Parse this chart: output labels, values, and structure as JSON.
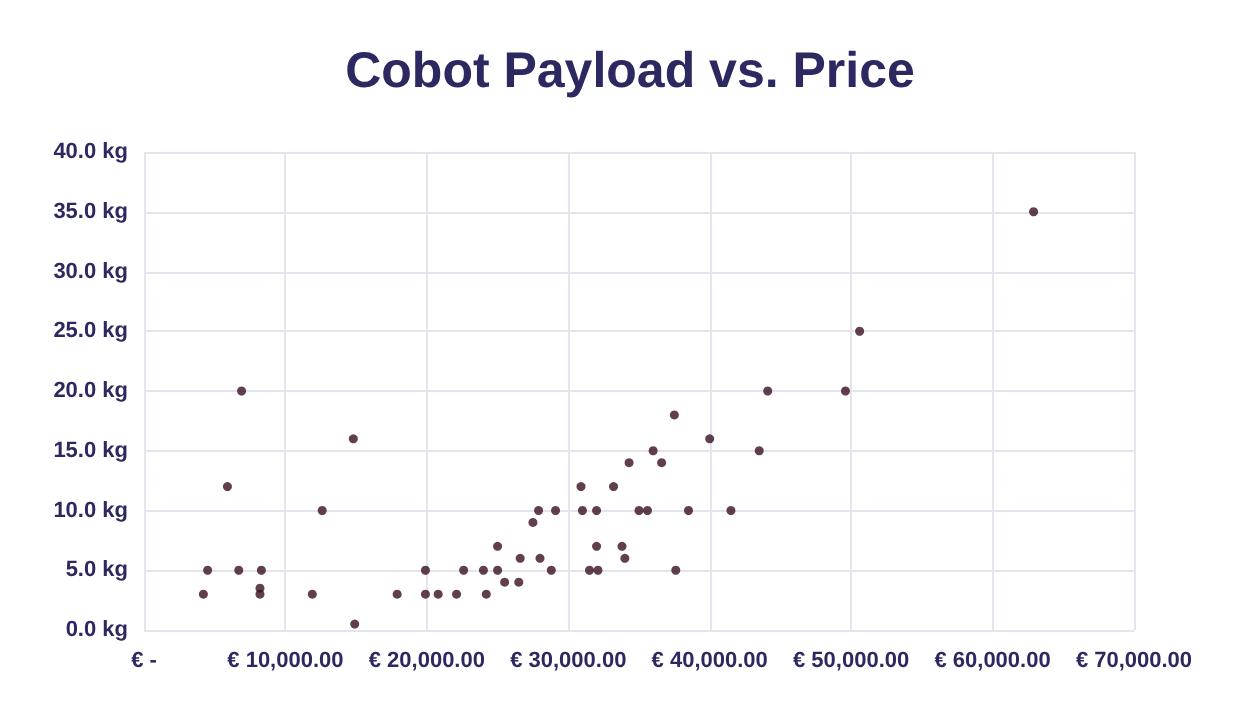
{
  "chart_data": {
    "type": "scatter",
    "title": "Cobot Payload vs. Price",
    "x": [
      4200,
      4500,
      5900,
      6900,
      6700,
      8200,
      8200,
      8300,
      11900,
      12600,
      14800,
      14900,
      17900,
      19900,
      19900,
      20800,
      22100,
      22600,
      24000,
      24200,
      25000,
      25000,
      25500,
      26500,
      26600,
      27500,
      27900,
      28000,
      28800,
      29100,
      30900,
      31000,
      31500,
      32000,
      32000,
      32100,
      33200,
      33800,
      34000,
      34300,
      35000,
      35600,
      36000,
      36600,
      37500,
      37600,
      38500,
      40000,
      41500,
      43500,
      44100,
      49600,
      50600,
      62900
    ],
    "series": [
      {
        "color": "#3a0f22",
        "values": [
          3,
          5,
          12,
          20,
          5,
          3,
          3.5,
          5,
          3,
          10,
          16,
          0.5,
          3,
          5,
          3,
          3,
          3,
          5,
          5,
          3,
          7,
          5,
          4,
          4,
          6,
          9,
          10,
          6,
          5,
          10,
          12,
          10,
          5,
          10,
          7,
          5,
          12,
          7,
          6,
          14,
          10,
          10,
          15,
          14,
          18,
          5,
          10,
          16,
          10,
          15,
          20,
          20,
          25,
          35
        ]
      }
    ],
    "xlim": [
      0,
      70000
    ],
    "ylim": [
      0,
      40
    ],
    "xticks": [
      {
        "value": 0,
        "label": "€ -"
      },
      {
        "value": 10000,
        "label": "€ 10,000.00"
      },
      {
        "value": 20000,
        "label": "€ 20,000.00"
      },
      {
        "value": 30000,
        "label": "€ 30,000.00"
      },
      {
        "value": 40000,
        "label": "€ 40,000.00"
      },
      {
        "value": 50000,
        "label": "€ 50,000.00"
      },
      {
        "value": 60000,
        "label": "€ 60,000.00"
      },
      {
        "value": 70000,
        "label": "€ 70,000.00"
      }
    ],
    "yticks": [
      {
        "value": 0,
        "label": "0.0 kg"
      },
      {
        "value": 5,
        "label": "5.0 kg"
      },
      {
        "value": 10,
        "label": "10.0 kg"
      },
      {
        "value": 15,
        "label": "15.0 kg"
      },
      {
        "value": 20,
        "label": "20.0 kg"
      },
      {
        "value": 25,
        "label": "25.0 kg"
      },
      {
        "value": 30,
        "label": "30.0 kg"
      },
      {
        "value": 35,
        "label": "35.0 kg"
      },
      {
        "value": 40,
        "label": "40.0 kg"
      }
    ],
    "grid": true,
    "marker": "circle"
  }
}
